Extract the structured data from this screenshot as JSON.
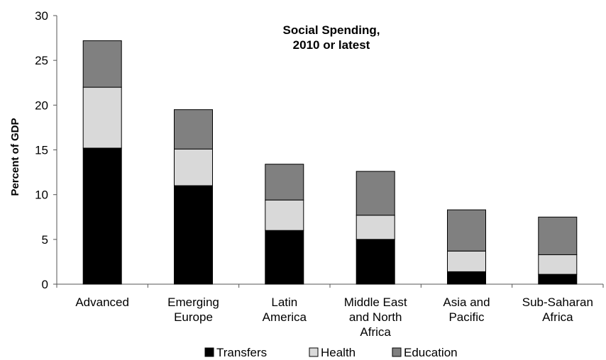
{
  "chart_data": {
    "type": "bar",
    "stacked": true,
    "title_lines": [
      "Social Spending,",
      "2010 or latest"
    ],
    "xlabel": "",
    "ylabel": "Percent of GDP",
    "ylim": [
      0,
      30
    ],
    "yticks": [
      0,
      5,
      10,
      15,
      20,
      25,
      30
    ],
    "grid": false,
    "legend_position": "bottom",
    "categories": [
      [
        "Advanced"
      ],
      [
        "Emerging",
        "Europe"
      ],
      [
        "Latin",
        "America"
      ],
      [
        "Middle East",
        "and North",
        "Africa"
      ],
      [
        "Asia and",
        "Pacific"
      ],
      [
        "Sub-Saharan",
        "Africa"
      ]
    ],
    "series": [
      {
        "name": "Transfers",
        "color": "#000000",
        "values": [
          15.2,
          11.0,
          6.0,
          5.0,
          1.4,
          1.1
        ]
      },
      {
        "name": "Health",
        "color": "#d9d9d9",
        "values": [
          6.8,
          4.1,
          3.4,
          2.7,
          2.3,
          2.2
        ]
      },
      {
        "name": "Education",
        "color": "#808080",
        "values": [
          5.2,
          4.4,
          4.0,
          4.9,
          4.6,
          4.2
        ]
      }
    ]
  }
}
